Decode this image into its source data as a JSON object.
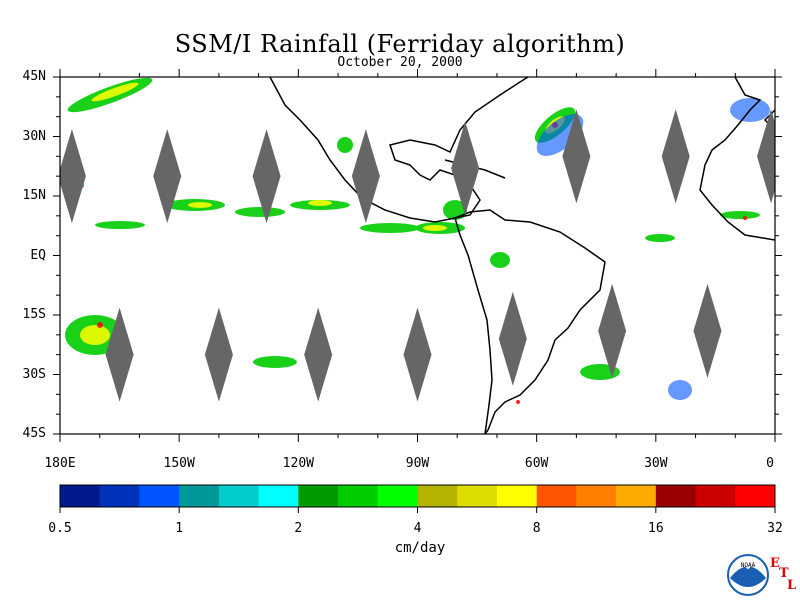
{
  "title": "SSM/I Rainfall (Ferriday algorithm)",
  "date": "October 20, 2000",
  "lat_labels": [
    "45N",
    "30N",
    "15N",
    "EQ",
    "15S",
    "30S",
    "45S"
  ],
  "lon_labels": [
    "180E",
    "150W",
    "120W",
    "90W",
    "60W",
    "30W",
    "0"
  ],
  "colorbar": {
    "ticks": [
      "0.5",
      "1",
      "2",
      "4",
      "8",
      "16",
      "32"
    ],
    "units": "cm/day",
    "colors": [
      "#001a8c",
      "#0033bb",
      "#0055ff",
      "#009999",
      "#00cccc",
      "#00ffff",
      "#009900",
      "#00cc00",
      "#00ff00",
      "#b3b300",
      "#dddd00",
      "#ffff00",
      "#ff5500",
      "#ff8000",
      "#ffaa00",
      "#990000",
      "#cc0000",
      "#ff0000"
    ]
  },
  "map": {
    "lon_range": [
      -180,
      0
    ],
    "lat_range": [
      -45,
      45
    ],
    "swath_gaps_color": "#666666",
    "swath_gaps": [
      {
        "lon": -177,
        "lat": 20
      },
      {
        "lon": -153,
        "lat": 20
      },
      {
        "lon": -128,
        "lat": 20
      },
      {
        "lon": -103,
        "lat": 20
      },
      {
        "lon": -78,
        "lat": 22
      },
      {
        "lon": -50,
        "lat": 25
      },
      {
        "lon": -25,
        "lat": 25
      },
      {
        "lon": -1,
        "lat": 25
      },
      {
        "lon": -165,
        "lat": -25
      },
      {
        "lon": -140,
        "lat": -25
      },
      {
        "lon": -115,
        "lat": -25
      },
      {
        "lon": -90,
        "lat": -25
      },
      {
        "lon": -66,
        "lat": -21
      },
      {
        "lon": -41,
        "lat": -19
      },
      {
        "lon": -17,
        "lat": -19
      }
    ]
  },
  "logo": {
    "text": "NOAA",
    "letters": [
      "E",
      "T",
      "L"
    ]
  }
}
